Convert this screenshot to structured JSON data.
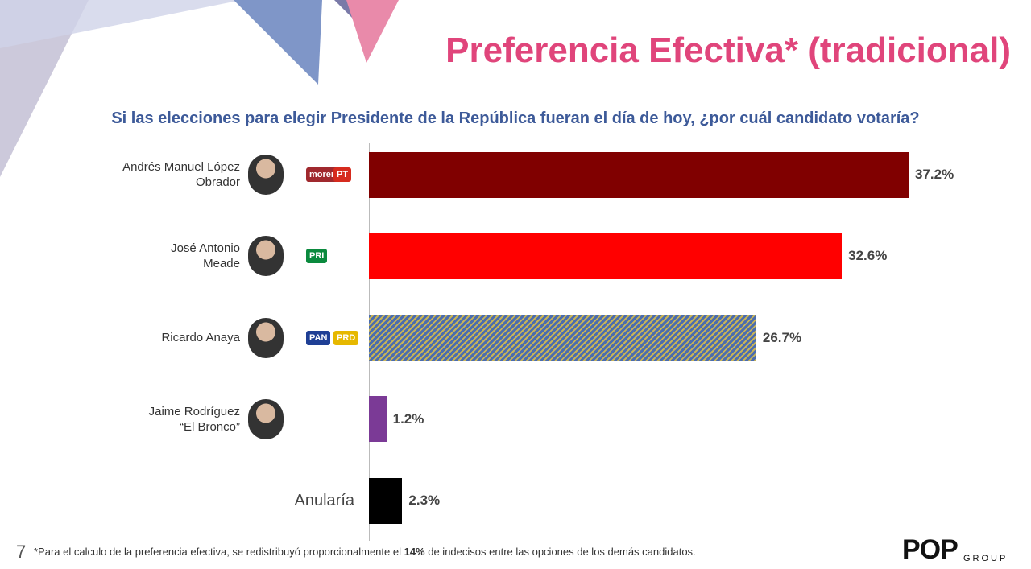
{
  "chart_data": {
    "type": "barh",
    "title": "Preferencia Efectiva* (tradicional)",
    "subtitle": "Si las elecciones para elegir Presidente de la República fueran el día de hoy, ¿por cuál candidato votaría?",
    "categories": [
      "Andrés Manuel López\nObrador",
      "José Antonio\nMeade",
      "Ricardo Anaya",
      "Jaime Rodríguez\n“El Bronco”",
      "Anularía"
    ],
    "values": [
      37.2,
      32.6,
      26.7,
      1.2,
      2.3
    ],
    "value_labels": [
      "37.2%",
      "32.6%",
      "26.7%",
      "1.2%",
      "2.3%"
    ],
    "colors": [
      "#800000",
      "#ff0000",
      "#4a6cb0",
      "#7b3a96",
      "#000000"
    ],
    "stripe_colors": [
      null,
      null,
      "#c9b455",
      null,
      null
    ],
    "party_logos": [
      [
        "morena",
        "PT"
      ],
      [
        "PRI"
      ],
      [
        "PAN",
        "PRD"
      ],
      [],
      []
    ]
  },
  "footer": {
    "page_number": "7",
    "note_before": "*Para el calculo de la preferencia efectiva, se redistribuyó proporcionalmente el ",
    "note_bold": "14%",
    "note_after": " de indecisos entre las opciones de los demás candidatos.",
    "logo": "POP",
    "logo_sub": "GROUP"
  }
}
